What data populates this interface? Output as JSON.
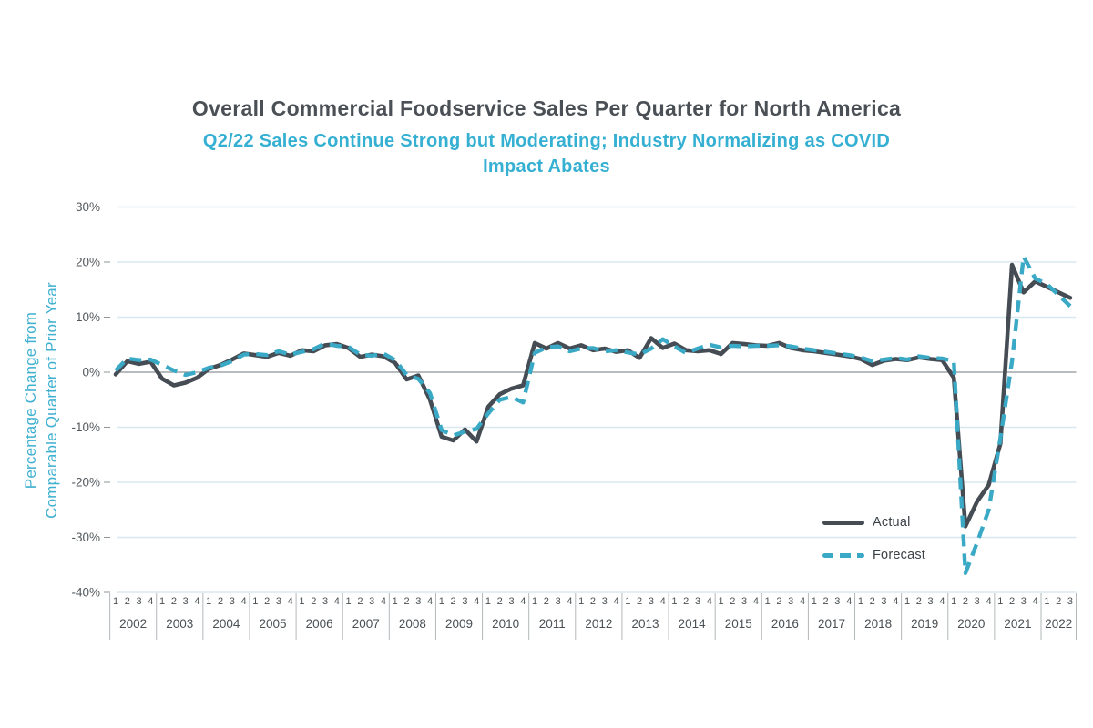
{
  "header": {
    "title": "Overall Commercial Foodservice Sales Per Quarter for North America",
    "subtitle_line1": "Q2/22 Sales Continue Strong but Moderating; Industry Normalizing as COVID",
    "subtitle_line2": "Impact Abates"
  },
  "y_axis": {
    "label_line1": "Percentage Change from",
    "label_line2": "Comparable Quarter of Prior Year",
    "ticks": [
      "30%",
      "20%",
      "10%",
      "0%",
      "-10%",
      "-20%",
      "-30%",
      "-40%"
    ],
    "tick_values": [
      30,
      20,
      10,
      0,
      -10,
      -20,
      -30,
      -40
    ]
  },
  "legend": [
    {
      "label": "Actual",
      "style": "solid",
      "color": "#454c53"
    },
    {
      "label": "Forecast",
      "style": "dashed",
      "color": "#3aa9c6"
    }
  ],
  "colors": {
    "title": "#4a5055",
    "subtitle_teal": "#35b0d2",
    "actual_line": "#454c53",
    "forecast_line": "#3aa9c6",
    "gridline": "#d8e8ef",
    "zero_line": "#8e9497",
    "axis_text": "#4a5054",
    "year_divider": "#b3b8bb"
  },
  "chart_data": {
    "type": "line",
    "title": "Overall Commercial Foodservice Sales Per Quarter for North America",
    "subtitle": "Q2/22 Sales Continue Strong but Moderating; Industry Normalizing as COVID Impact Abates",
    "ylabel": "Percentage Change from Comparable Quarter of Prior Year",
    "unit": "%",
    "ylim": [
      -40,
      30
    ],
    "grid": "horizontal",
    "legend_position": "inside-lower-right",
    "x_years": [
      {
        "year": "2002",
        "quarters": [
          "1",
          "2",
          "3",
          "4"
        ]
      },
      {
        "year": "2003",
        "quarters": [
          "1",
          "2",
          "3",
          "4"
        ]
      },
      {
        "year": "2004",
        "quarters": [
          "1",
          "2",
          "3",
          "4"
        ]
      },
      {
        "year": "2005",
        "quarters": [
          "1",
          "2",
          "3",
          "4"
        ]
      },
      {
        "year": "2006",
        "quarters": [
          "1",
          "2",
          "3",
          "4"
        ]
      },
      {
        "year": "2007",
        "quarters": [
          "1",
          "2",
          "3",
          "4"
        ]
      },
      {
        "year": "2008",
        "quarters": [
          "1",
          "2",
          "3",
          "4"
        ]
      },
      {
        "year": "2009",
        "quarters": [
          "1",
          "2",
          "3",
          "4"
        ]
      },
      {
        "year": "2010",
        "quarters": [
          "1",
          "2",
          "3",
          "4"
        ]
      },
      {
        "year": "2011",
        "quarters": [
          "1",
          "2",
          "3",
          "4"
        ]
      },
      {
        "year": "2012",
        "quarters": [
          "1",
          "2",
          "3",
          "4"
        ]
      },
      {
        "year": "2013",
        "quarters": [
          "1",
          "2",
          "3",
          "4"
        ]
      },
      {
        "year": "2014",
        "quarters": [
          "1",
          "2",
          "3",
          "4"
        ]
      },
      {
        "year": "2015",
        "quarters": [
          "1",
          "2",
          "3",
          "4"
        ]
      },
      {
        "year": "2016",
        "quarters": [
          "1",
          "2",
          "3",
          "4"
        ]
      },
      {
        "year": "2017",
        "quarters": [
          "1",
          "2",
          "3",
          "4"
        ]
      },
      {
        "year": "2018",
        "quarters": [
          "1",
          "2",
          "3",
          "4"
        ]
      },
      {
        "year": "2019",
        "quarters": [
          "1",
          "2",
          "3",
          "4"
        ]
      },
      {
        "year": "2020",
        "quarters": [
          "1",
          "2",
          "3",
          "4"
        ]
      },
      {
        "year": "2021",
        "quarters": [
          "1",
          "2",
          "3",
          "4"
        ]
      },
      {
        "year": "2022",
        "quarters": [
          "1",
          "2",
          "3"
        ]
      }
    ],
    "series": [
      {
        "name": "Actual",
        "values": [
          -0.4,
          2.0,
          1.5,
          1.9,
          -1.2,
          -2.4,
          -1.9,
          -1.0,
          0.6,
          1.3,
          2.3,
          3.4,
          3.1,
          2.8,
          3.5,
          3.0,
          4.0,
          3.8,
          4.9,
          5.1,
          4.4,
          2.8,
          3.2,
          2.9,
          1.7,
          -1.3,
          -0.6,
          -5.0,
          -11.7,
          -12.4,
          -10.4,
          -12.6,
          -6.3,
          -4.0,
          -3.0,
          -2.4,
          5.3,
          4.3,
          5.3,
          4.3,
          4.9,
          4.0,
          4.3,
          3.7,
          4.0,
          2.6,
          6.2,
          4.4,
          5.2,
          4.0,
          3.8,
          4.0,
          3.3,
          5.3,
          5.1,
          4.9,
          4.8,
          5.3,
          4.4,
          4.0,
          3.8,
          3.5,
          3.2,
          2.9,
          2.4,
          1.3,
          2.1,
          2.4,
          2.2,
          2.7,
          2.4,
          2.2,
          -1.0,
          -28.0,
          -23.5,
          -20.5,
          -13.0,
          19.5,
          14.5,
          16.5,
          15.5,
          14.5,
          13.5
        ]
      },
      {
        "name": "Forecast",
        "values": [
          0.3,
          2.5,
          2.2,
          2.3,
          1.3,
          0.3,
          -0.5,
          0.0,
          0.8,
          1.2,
          2.0,
          3.2,
          3.3,
          3.1,
          3.8,
          3.2,
          3.7,
          4.2,
          5.2,
          4.8,
          4.6,
          3.2,
          3.0,
          3.4,
          2.2,
          -0.5,
          -1.2,
          -3.8,
          -10.5,
          -11.5,
          -10.8,
          -10.3,
          -7.5,
          -5.0,
          -4.5,
          -5.5,
          3.5,
          4.5,
          4.7,
          3.8,
          4.3,
          4.4,
          3.8,
          4.0,
          3.6,
          3.2,
          4.3,
          6.0,
          4.7,
          3.5,
          4.3,
          5.0,
          4.5,
          4.8,
          4.7,
          4.8,
          4.8,
          4.9,
          4.7,
          4.3,
          4.0,
          3.7,
          3.4,
          3.1,
          2.7,
          2.0,
          2.3,
          2.6,
          2.3,
          2.9,
          2.6,
          2.5,
          2.0,
          -36.5,
          -31.0,
          -25.0,
          -12.0,
          2.0,
          21.0,
          17.0,
          16.0,
          14.0,
          12.0
        ]
      }
    ]
  }
}
